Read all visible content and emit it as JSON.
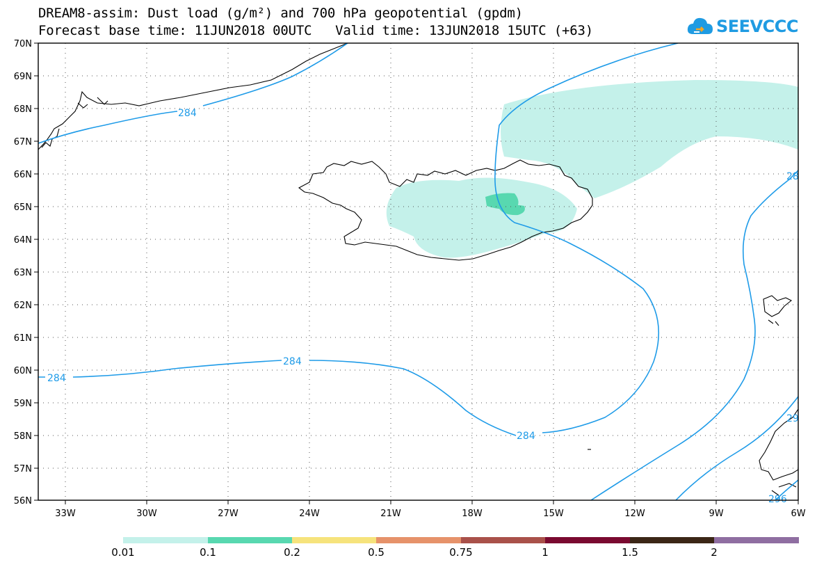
{
  "header": {
    "title_line1": "DREAM8-assim: Dust load (g/m²) and 700 hPa geopotential (gpdm)",
    "title_line2": "Forecast base time: 11JUN2018 00UTC   Valid time: 13JUN2018 15UTC (+63)"
  },
  "logo": {
    "text": "SEEVCCC"
  },
  "map": {
    "lat_labels": [
      "70N",
      "69N",
      "68N",
      "67N",
      "66N",
      "65N",
      "64N",
      "63N",
      "62N",
      "61N",
      "60N",
      "59N",
      "58N",
      "57N",
      "56N"
    ],
    "lon_labels": [
      "33W",
      "30W",
      "27W",
      "24W",
      "21W",
      "18W",
      "15W",
      "12W",
      "9W",
      "6W"
    ],
    "contour_labels": [
      "284",
      "284",
      "284",
      "284",
      "28",
      "29",
      "296"
    ],
    "colors": {
      "contour": "#1e9be8",
      "coast": "#000000",
      "dust_low": "#c4f1ea",
      "dust_mid": "#58d8b0"
    }
  },
  "colorbar": {
    "labels": [
      "0.01",
      "0.1",
      "0.2",
      "0.5",
      "0.75",
      "1",
      "1.5",
      "2"
    ],
    "colors": [
      "#c4f1ea",
      "#58d8b0",
      "#f6e37c",
      "#e6926a",
      "#a9514a",
      "#7a0a30",
      "#3b2616",
      "#8f6ea1"
    ]
  }
}
